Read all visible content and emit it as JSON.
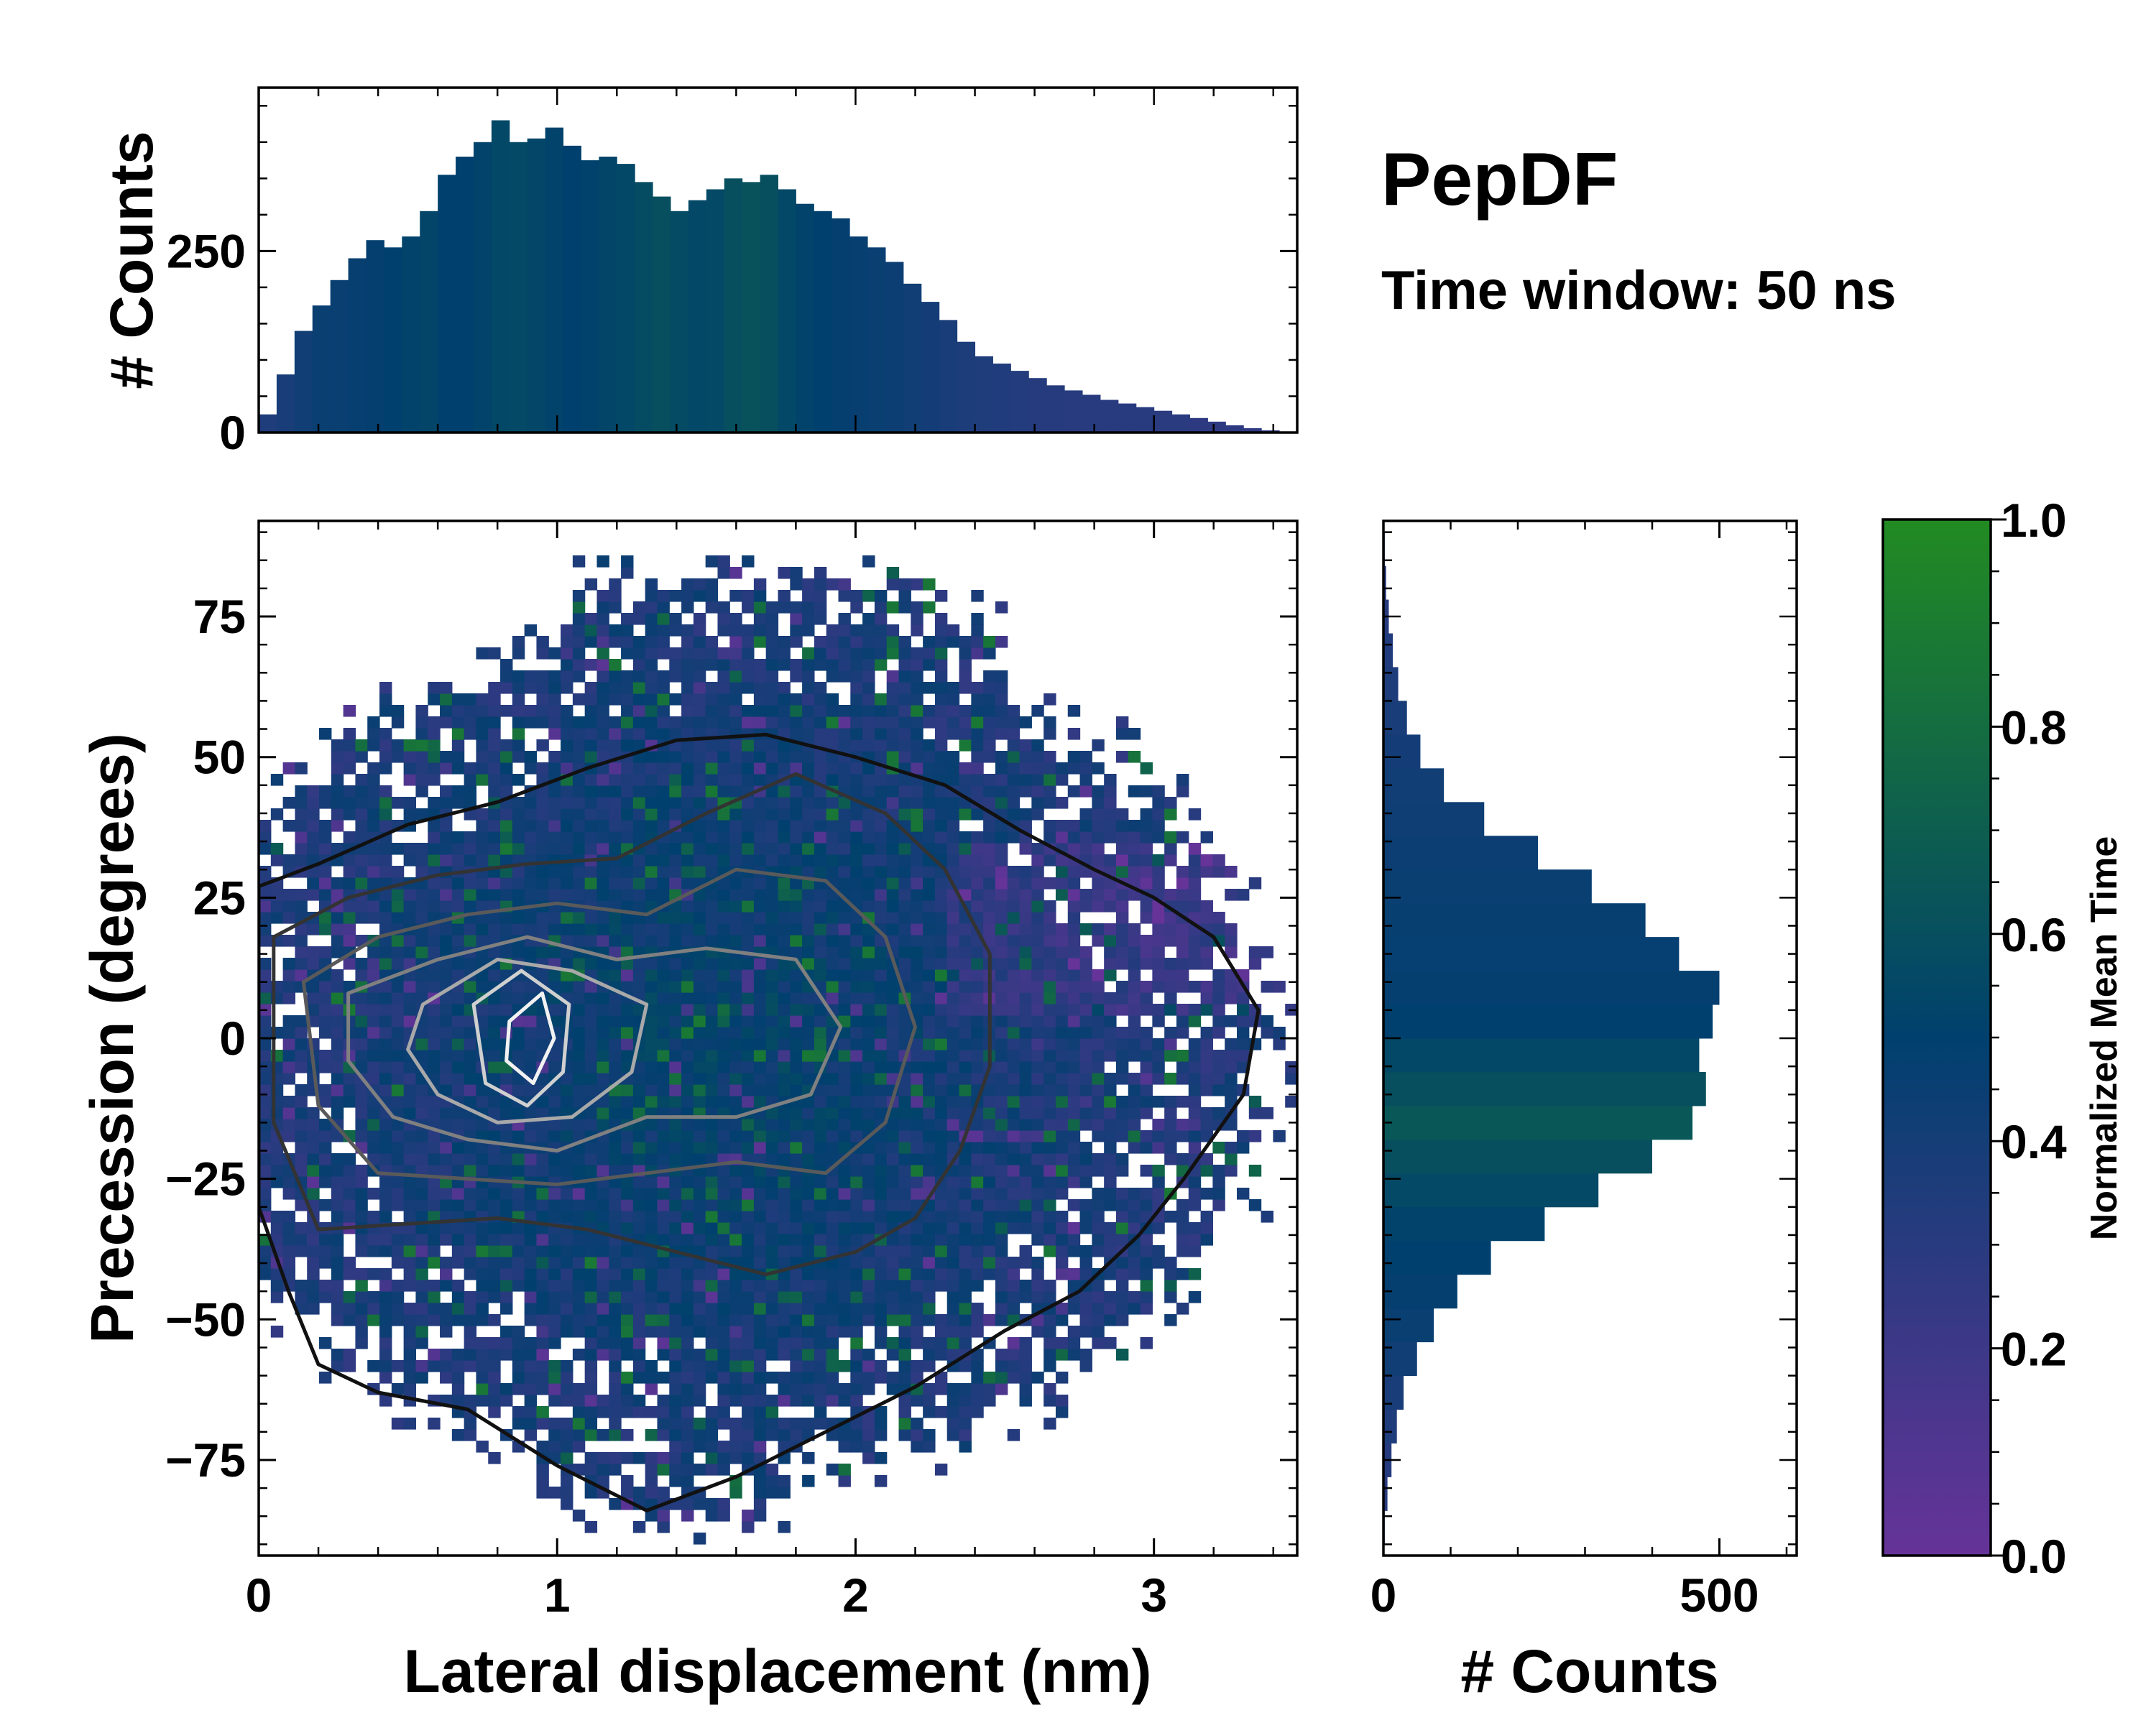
{
  "figure": {
    "title": "PepDF",
    "subtitle": "Time window: 50 ns"
  },
  "colors": {
    "cmap_low": "#663399",
    "cmap_mid": "#00406e",
    "cmap_high": "#228b22"
  },
  "chart_data": [
    {
      "id": "main",
      "type": "heatmap",
      "title": "",
      "xlabel": "Lateral displacement (nm)",
      "ylabel": "Precession (degrees)",
      "xlim": [
        0,
        3.48
      ],
      "ylim": [
        -92,
        92
      ],
      "xticks": [
        0,
        1,
        2,
        3
      ],
      "xtick_labels": [
        "0",
        "1",
        "2",
        "3"
      ],
      "yticks": [
        -75,
        -50,
        -25,
        0,
        25,
        50,
        75
      ],
      "ytick_labels": [
        "−75",
        "−50",
        "−25",
        "0",
        "25",
        "50",
        "75"
      ],
      "color_quantity": "Normalized Mean Time",
      "overlay": "density contours (black outer to white inner)",
      "contour_levels": [
        {
          "name": "level-1",
          "color": "#111111",
          "points": [
            [
              0,
              27
            ],
            [
              0.2,
              31
            ],
            [
              0.5,
              38
            ],
            [
              0.8,
              42
            ],
            [
              1.1,
              48
            ],
            [
              1.4,
              53
            ],
            [
              1.7,
              54
            ],
            [
              2.0,
              50
            ],
            [
              2.3,
              45
            ],
            [
              2.55,
              37
            ],
            [
              2.8,
              30
            ],
            [
              3.0,
              25
            ],
            [
              3.2,
              18
            ],
            [
              3.35,
              5
            ],
            [
              3.3,
              -10
            ],
            [
              3.1,
              -25
            ],
            [
              2.95,
              -35
            ],
            [
              2.75,
              -45
            ],
            [
              2.5,
              -52
            ],
            [
              2.2,
              -62
            ],
            [
              1.9,
              -70
            ],
            [
              1.6,
              -78
            ],
            [
              1.3,
              -84
            ],
            [
              1.0,
              -76
            ],
            [
              0.7,
              -66
            ],
            [
              0.4,
              -63
            ],
            [
              0.2,
              -58
            ],
            [
              0.1,
              -45
            ],
            [
              0,
              -30
            ]
          ]
        },
        {
          "name": "level-2",
          "color": "#333333",
          "points": [
            [
              0.05,
              18
            ],
            [
              0.3,
              25
            ],
            [
              0.6,
              29
            ],
            [
              0.9,
              31
            ],
            [
              1.2,
              32
            ],
            [
              1.5,
              40
            ],
            [
              1.8,
              47
            ],
            [
              2.1,
              40
            ],
            [
              2.3,
              30
            ],
            [
              2.45,
              15
            ],
            [
              2.45,
              -5
            ],
            [
              2.35,
              -20
            ],
            [
              2.2,
              -32
            ],
            [
              2.0,
              -38
            ],
            [
              1.7,
              -42
            ],
            [
              1.4,
              -38
            ],
            [
              1.1,
              -34
            ],
            [
              0.8,
              -32
            ],
            [
              0.5,
              -33
            ],
            [
              0.2,
              -34
            ],
            [
              0.05,
              -15
            ]
          ]
        },
        {
          "name": "level-3",
          "color": "#5a5a5a",
          "points": [
            [
              0.15,
              10
            ],
            [
              0.4,
              18
            ],
            [
              0.7,
              22
            ],
            [
              1.0,
              24
            ],
            [
              1.3,
              22
            ],
            [
              1.6,
              30
            ],
            [
              1.9,
              28
            ],
            [
              2.1,
              18
            ],
            [
              2.2,
              2
            ],
            [
              2.1,
              -15
            ],
            [
              1.9,
              -24
            ],
            [
              1.6,
              -22
            ],
            [
              1.3,
              -24
            ],
            [
              1.0,
              -26
            ],
            [
              0.7,
              -25
            ],
            [
              0.4,
              -24
            ],
            [
              0.2,
              -12
            ]
          ]
        },
        {
          "name": "level-4",
          "color": "#808080",
          "points": [
            [
              0.3,
              8
            ],
            [
              0.6,
              14
            ],
            [
              0.9,
              18
            ],
            [
              1.2,
              14
            ],
            [
              1.5,
              16
            ],
            [
              1.8,
              14
            ],
            [
              1.95,
              2
            ],
            [
              1.85,
              -10
            ],
            [
              1.6,
              -14
            ],
            [
              1.3,
              -14
            ],
            [
              1.0,
              -20
            ],
            [
              0.7,
              -18
            ],
            [
              0.45,
              -14
            ],
            [
              0.3,
              -4
            ]
          ]
        },
        {
          "name": "level-5",
          "color": "#a9a9a9",
          "points": [
            [
              0.55,
              6
            ],
            [
              0.8,
              14
            ],
            [
              1.05,
              12
            ],
            [
              1.3,
              6
            ],
            [
              1.25,
              -6
            ],
            [
              1.05,
              -14
            ],
            [
              0.8,
              -15
            ],
            [
              0.6,
              -10
            ],
            [
              0.5,
              -2
            ]
          ]
        },
        {
          "name": "level-6",
          "color": "#d0d0d0",
          "points": [
            [
              0.72,
              6
            ],
            [
              0.88,
              12
            ],
            [
              1.04,
              6
            ],
            [
              1.02,
              -6
            ],
            [
              0.9,
              -12
            ],
            [
              0.76,
              -8
            ]
          ]
        },
        {
          "name": "level-7",
          "color": "#f2f2f2",
          "points": [
            [
              0.84,
              3
            ],
            [
              0.95,
              8
            ],
            [
              0.99,
              0
            ],
            [
              0.92,
              -8
            ],
            [
              0.83,
              -4
            ]
          ]
        }
      ]
    },
    {
      "id": "top-histogram",
      "type": "bar",
      "title": "",
      "xlabel": "",
      "ylabel": "# Counts",
      "xlim": [
        0,
        3.48
      ],
      "ylim": [
        0,
        475
      ],
      "yticks": [
        0,
        250
      ],
      "ytick_labels": [
        "0",
        "250"
      ],
      "x": [
        0.03,
        0.09,
        0.15,
        0.21,
        0.27,
        0.33,
        0.39,
        0.45,
        0.51,
        0.57,
        0.63,
        0.69,
        0.75,
        0.81,
        0.87,
        0.93,
        0.99,
        1.05,
        1.11,
        1.17,
        1.23,
        1.29,
        1.35,
        1.41,
        1.47,
        1.53,
        1.59,
        1.65,
        1.71,
        1.77,
        1.83,
        1.89,
        1.95,
        2.01,
        2.07,
        2.13,
        2.19,
        2.25,
        2.31,
        2.37,
        2.43,
        2.49,
        2.55,
        2.61,
        2.67,
        2.73,
        2.79,
        2.85,
        2.91,
        2.97,
        3.03,
        3.09,
        3.15,
        3.21,
        3.27,
        3.33,
        3.39
      ],
      "values": [
        25,
        80,
        140,
        175,
        210,
        240,
        265,
        255,
        270,
        305,
        355,
        380,
        400,
        430,
        400,
        405,
        420,
        395,
        375,
        380,
        370,
        345,
        325,
        305,
        320,
        335,
        350,
        345,
        355,
        335,
        315,
        305,
        295,
        270,
        255,
        235,
        205,
        180,
        155,
        125,
        105,
        95,
        85,
        75,
        65,
        58,
        52,
        45,
        40,
        35,
        30,
        25,
        20,
        15,
        10,
        6,
        3
      ],
      "color_values": [
        0.35,
        0.38,
        0.42,
        0.45,
        0.45,
        0.46,
        0.48,
        0.5,
        0.52,
        0.53,
        0.5,
        0.5,
        0.52,
        0.55,
        0.56,
        0.54,
        0.52,
        0.5,
        0.51,
        0.53,
        0.55,
        0.58,
        0.6,
        0.57,
        0.55,
        0.56,
        0.6,
        0.62,
        0.6,
        0.55,
        0.52,
        0.5,
        0.48,
        0.46,
        0.45,
        0.44,
        0.42,
        0.4,
        0.38,
        0.36,
        0.35,
        0.34,
        0.33,
        0.32,
        0.32,
        0.31,
        0.31,
        0.3,
        0.3,
        0.3,
        0.29,
        0.29,
        0.28,
        0.28,
        0.28,
        0.27,
        0.27
      ]
    },
    {
      "id": "right-histogram",
      "type": "bar",
      "orientation": "horizontal",
      "title": "",
      "xlabel": "# Counts",
      "ylabel": "",
      "xlim": [
        0,
        615
      ],
      "ylim": [
        -92,
        92
      ],
      "xticks": [
        0,
        500
      ],
      "xtick_labels": [
        "0",
        "500"
      ],
      "y": [
        -87,
        -81,
        -75,
        -69,
        -63,
        -57,
        -51,
        -45,
        -39,
        -33,
        -27,
        -21,
        -15,
        -9,
        -3,
        3,
        9,
        15,
        21,
        27,
        33,
        39,
        45,
        51,
        57,
        63,
        69,
        75,
        81,
        87
      ],
      "values": [
        2,
        6,
        12,
        20,
        30,
        50,
        75,
        110,
        160,
        240,
        320,
        400,
        460,
        480,
        470,
        490,
        500,
        440,
        390,
        310,
        230,
        150,
        90,
        55,
        35,
        22,
        14,
        8,
        4,
        2
      ],
      "color_values": [
        0.3,
        0.3,
        0.32,
        0.35,
        0.38,
        0.42,
        0.45,
        0.48,
        0.5,
        0.52,
        0.56,
        0.6,
        0.65,
        0.6,
        0.55,
        0.5,
        0.48,
        0.47,
        0.46,
        0.45,
        0.44,
        0.43,
        0.42,
        0.4,
        0.38,
        0.36,
        0.34,
        0.32,
        0.3,
        0.3
      ]
    },
    {
      "id": "colorbar",
      "type": "colorbar",
      "label": "Normalized Mean Time",
      "range": [
        0,
        1
      ],
      "ticks": [
        0,
        0.2,
        0.4,
        0.6,
        0.8,
        1.0
      ],
      "tick_labels": [
        "0.0",
        "0.2",
        "0.4",
        "0.6",
        "0.8",
        "1.0"
      ]
    }
  ]
}
